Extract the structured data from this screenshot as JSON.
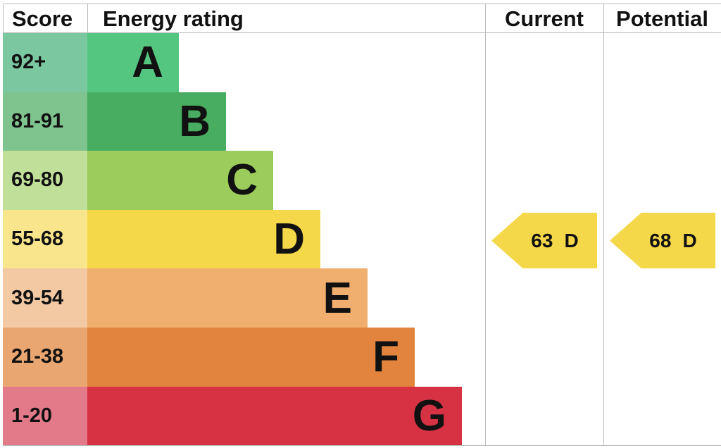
{
  "header": {
    "score": "Score",
    "rating": "Energy rating",
    "current": "Current",
    "potential": "Potential"
  },
  "bands": [
    {
      "score": "92+",
      "letter": "A"
    },
    {
      "score": "81-91",
      "letter": "B"
    },
    {
      "score": "69-80",
      "letter": "C"
    },
    {
      "score": "55-68",
      "letter": "D"
    },
    {
      "score": "39-54",
      "letter": "E"
    },
    {
      "score": "21-38",
      "letter": "F"
    },
    {
      "score": "1-20",
      "letter": "G"
    }
  ],
  "current": {
    "score": 63,
    "band": "D"
  },
  "potential": {
    "score": 68,
    "band": "D"
  }
}
